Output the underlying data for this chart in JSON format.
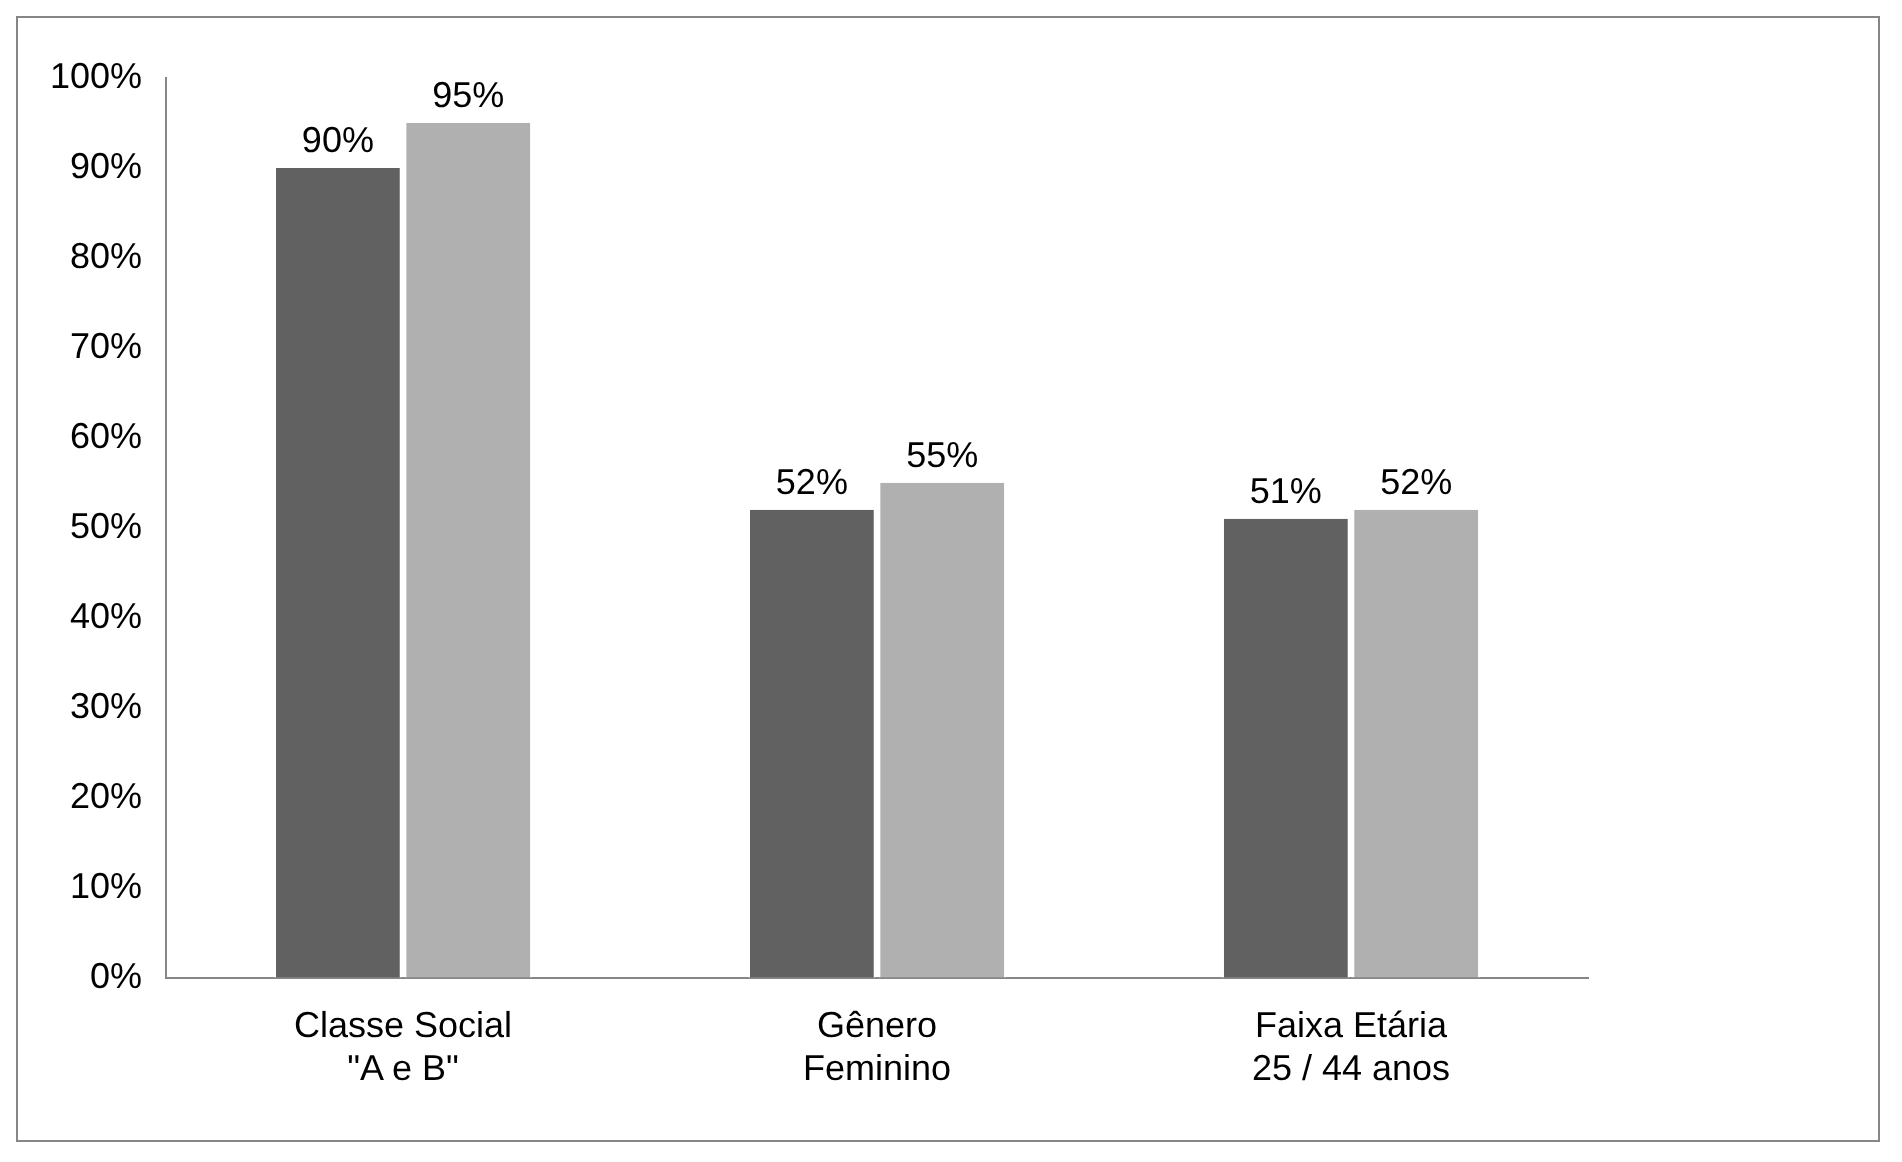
{
  "chart_data": {
    "type": "bar",
    "categories": [
      "Classe Social\n\"A e B\"",
      "Gênero\nFeminino",
      "Faixa Etária\n25 / 44 anos"
    ],
    "series": [
      {
        "color": "#616161",
        "values": [
          90,
          52,
          51
        ],
        "value_labels": [
          "90%",
          "52%",
          "51%"
        ]
      },
      {
        "color": "#b0b0b0",
        "values": [
          95,
          55,
          52
        ],
        "value_labels": [
          "95%",
          "55%",
          "52%"
        ]
      }
    ],
    "ylim": [
      0,
      100
    ],
    "yticks": [
      {
        "value": 0,
        "label": "0%"
      },
      {
        "value": 10,
        "label": "10%"
      },
      {
        "value": 20,
        "label": "20%"
      },
      {
        "value": 30,
        "label": "30%"
      },
      {
        "value": 40,
        "label": "40%"
      },
      {
        "value": 50,
        "label": "50%"
      },
      {
        "value": 60,
        "label": "60%"
      },
      {
        "value": 70,
        "label": "70%"
      },
      {
        "value": 80,
        "label": "80%"
      },
      {
        "value": 90,
        "label": "90%"
      },
      {
        "value": 100,
        "label": "100%"
      }
    ],
    "grid": false,
    "legend": false
  }
}
